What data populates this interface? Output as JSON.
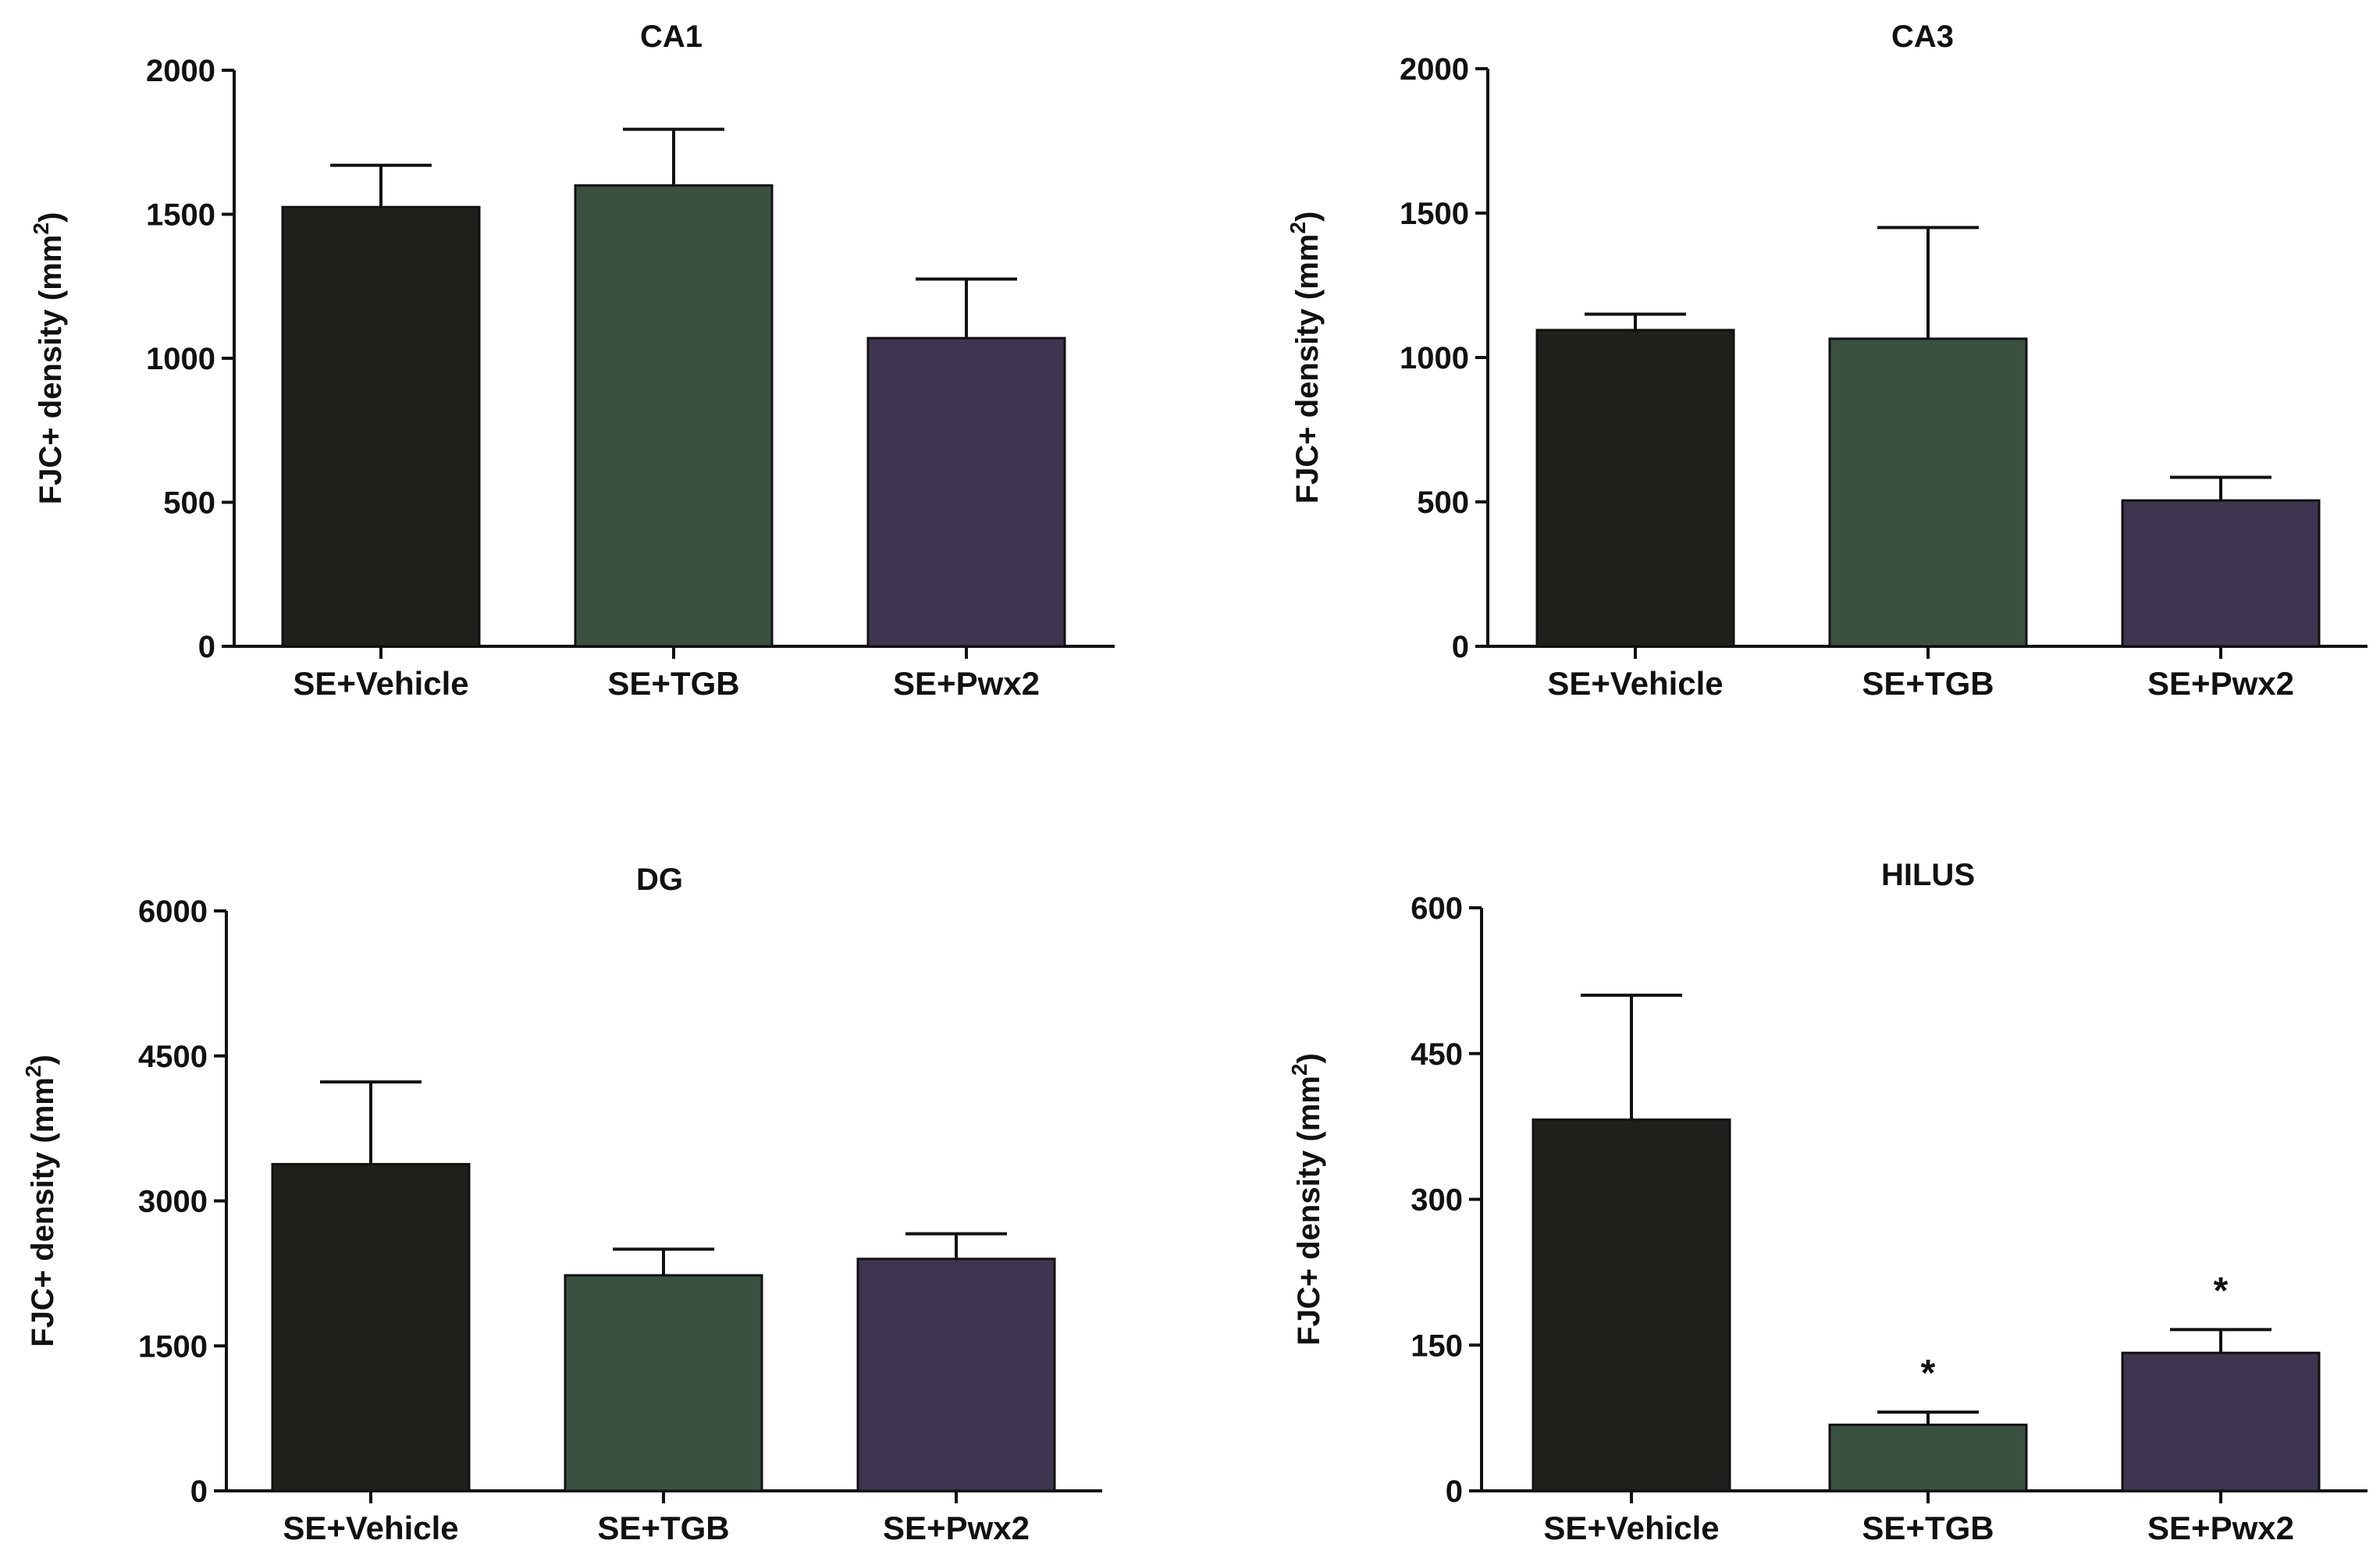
{
  "colors": {
    "SE+Vehicle": "#1f1f1c",
    "SE+TGB": "#3a5142",
    "SE+Pwx2": "#3e3650",
    "axis": "#111111"
  },
  "chart_data": [
    {
      "type": "bar",
      "title": "CA1",
      "ylabel": "FJC+ density (mm",
      "ylabel_sup": "2",
      "ylabel_close": ")",
      "categories": [
        "SE+Vehicle",
        "SE+TGB",
        "SE+Pwx2"
      ],
      "values": [
        1525,
        1600,
        1070
      ],
      "errors": [
        145,
        195,
        205
      ],
      "significance": [
        "",
        "",
        ""
      ],
      "ylim": [
        0,
        2000
      ],
      "yticks": [
        0,
        500,
        1000,
        1500,
        2000
      ]
    },
    {
      "type": "bar",
      "title": "CA3",
      "ylabel": "FJC+ density (mm",
      "ylabel_sup": "2",
      "ylabel_close": ")",
      "categories": [
        "SE+Vehicle",
        "SE+TGB",
        "SE+Pwx2"
      ],
      "values": [
        1095,
        1065,
        505
      ],
      "errors": [
        55,
        385,
        80
      ],
      "significance": [
        "",
        "",
        ""
      ],
      "ylim": [
        0,
        2000
      ],
      "yticks": [
        0,
        500,
        1000,
        1500,
        2000
      ]
    },
    {
      "type": "bar",
      "title": "DG",
      "ylabel": "FJC+ density (mm",
      "ylabel_sup": "2",
      "ylabel_close": ")",
      "categories": [
        "SE+Vehicle",
        "SE+TGB",
        "SE+Pwx2"
      ],
      "values": [
        3380,
        2230,
        2400
      ],
      "errors": [
        850,
        270,
        260
      ],
      "significance": [
        "",
        "",
        ""
      ],
      "ylim": [
        0,
        6000
      ],
      "yticks": [
        0,
        1500,
        3000,
        4500,
        6000
      ]
    },
    {
      "type": "bar",
      "title": "HILUS",
      "ylabel": "FJC+ density (mm",
      "ylabel_sup": "2",
      "ylabel_close": ")",
      "categories": [
        "SE+Vehicle",
        "SE+TGB",
        "SE+Pwx2"
      ],
      "values": [
        382,
        68,
        142
      ],
      "errors": [
        128,
        13,
        24
      ],
      "significance": [
        "",
        "*",
        "*"
      ],
      "ylim": [
        0,
        600
      ],
      "yticks": [
        0,
        150,
        300,
        450,
        600
      ]
    }
  ]
}
